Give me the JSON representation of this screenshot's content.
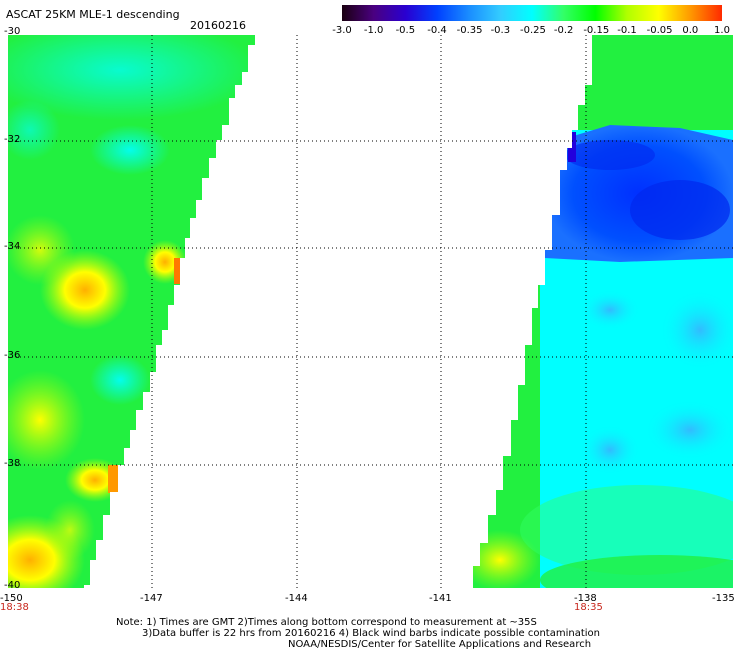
{
  "header": {
    "title": "ASCAT 25KM MLE-1 descending",
    "date": "20160216"
  },
  "colorbar": {
    "labels": [
      "-3.0",
      "-1.0",
      "-0.5",
      "-0.4",
      "-0.35",
      "-0.3",
      "-0.25",
      "-0.2",
      "-0.15",
      "-0.1",
      "-0.05",
      "0.0",
      "1.0"
    ],
    "colors": [
      "#1a0010",
      "#4a0080",
      "#2a00d0",
      "#0040ff",
      "#1a8cff",
      "#33ccff",
      "#00ffff",
      "#33ff66",
      "#00ff00",
      "#b0ff00",
      "#ffff00",
      "#ff9900",
      "#ff2a00"
    ]
  },
  "map": {
    "y_labels": [
      "-30",
      "-32",
      "-34",
      "-36",
      "-38",
      "-40"
    ],
    "x_labels": [
      "-150",
      "-147",
      "-144",
      "-141",
      "-138",
      "-135"
    ],
    "time_labels": [
      "18:38",
      "18:35"
    ],
    "grid_style": "dotted"
  },
  "notes": {
    "line1": "Note: 1) Times are GMT 2)Times along bottom correspond to measurement at ~35S",
    "line2": "3)Data buffer is 22 hrs from 20160216 4) Black wind barbs indicate possible contamination",
    "line3": "NOAA/NESDIS/Center for Satellite Applications and Research"
  }
}
